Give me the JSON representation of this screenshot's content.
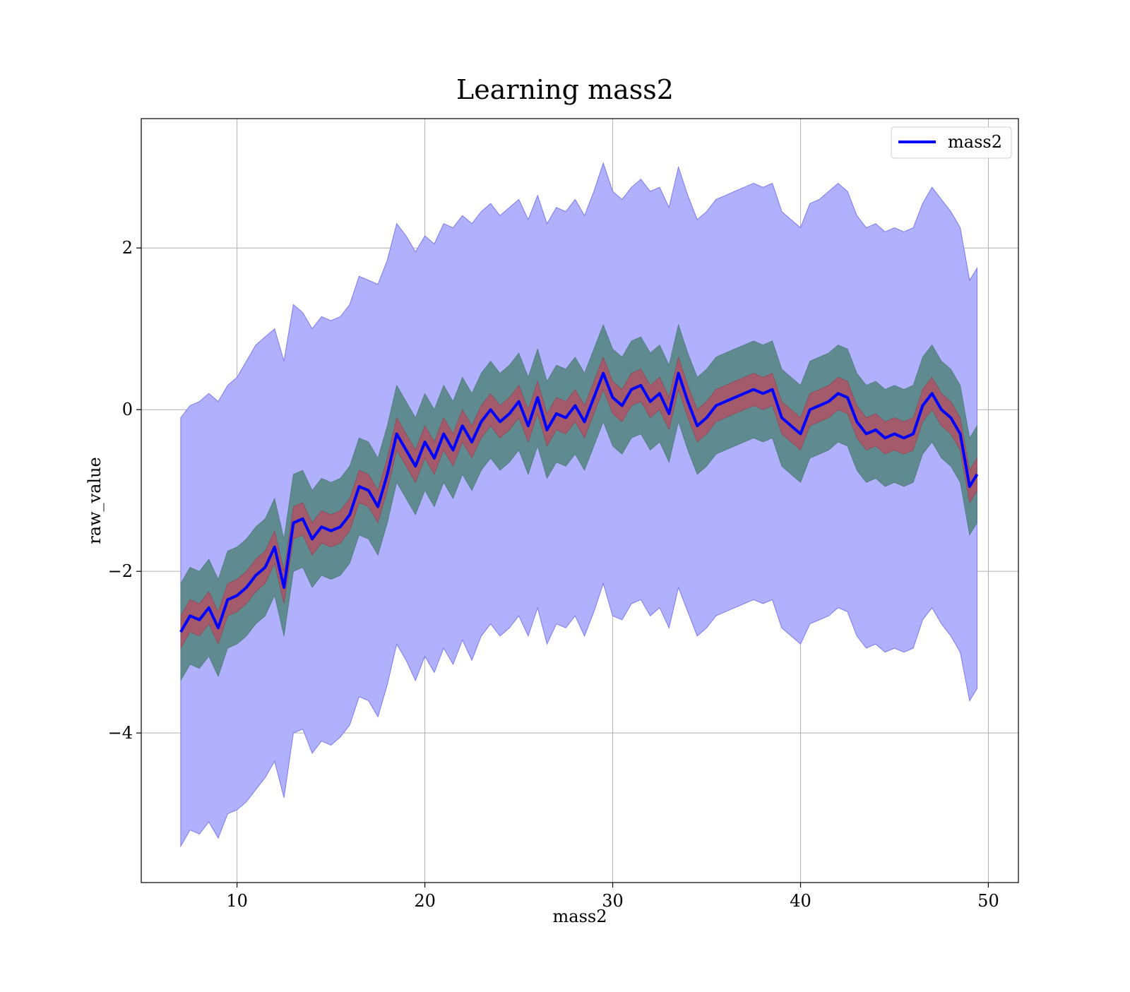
{
  "chart_data": {
    "type": "line",
    "title": "Learning mass2",
    "xlabel": "mass2",
    "ylabel": "raw_value",
    "xlim": [
      4.9,
      51.6
    ],
    "ylim": [
      -5.85,
      3.6
    ],
    "xticks": [
      10,
      20,
      30,
      40,
      50
    ],
    "yticks": [
      -4,
      -2,
      0,
      2
    ],
    "grid": true,
    "legend": {
      "position": "top-right",
      "entries": [
        "mass2"
      ]
    },
    "colors": {
      "line": "#0000ff",
      "outer_band": "#b0b0fc",
      "outer_band_edge": "#7b7bf4",
      "middle_band": "#5f8a8f",
      "inner_band": "#a35a6b",
      "grid": "#b0b0b0"
    },
    "series": [
      {
        "name": "mass2",
        "x": [
          7.0,
          7.5,
          8.0,
          8.5,
          9.0,
          9.5,
          10.0,
          10.5,
          11.0,
          11.5,
          12.0,
          12.5,
          13.0,
          13.5,
          14.0,
          14.5,
          15.0,
          15.5,
          16.0,
          16.5,
          17.0,
          17.5,
          18.0,
          18.5,
          19.0,
          19.5,
          20.0,
          20.5,
          21.0,
          21.5,
          22.0,
          22.5,
          23.0,
          23.5,
          24.0,
          24.5,
          25.0,
          25.5,
          26.0,
          26.5,
          27.0,
          27.5,
          28.0,
          28.5,
          29.0,
          29.5,
          30.0,
          30.5,
          31.0,
          31.5,
          32.0,
          32.5,
          33.0,
          33.5,
          34.0,
          34.5,
          35.0,
          35.5,
          36.0,
          36.5,
          37.0,
          37.5,
          38.0,
          38.5,
          39.0,
          39.5,
          40.0,
          40.5,
          41.0,
          41.5,
          42.0,
          42.5,
          43.0,
          43.5,
          44.0,
          44.5,
          45.0,
          45.5,
          46.0,
          46.5,
          47.0,
          47.5,
          48.0,
          48.5,
          49.0,
          49.4
        ],
        "y": [
          -2.75,
          -2.55,
          -2.6,
          -2.45,
          -2.7,
          -2.35,
          -2.3,
          -2.2,
          -2.05,
          -1.95,
          -1.7,
          -2.2,
          -1.4,
          -1.35,
          -1.6,
          -1.45,
          -1.5,
          -1.45,
          -1.3,
          -0.95,
          -1.0,
          -1.2,
          -0.8,
          -0.3,
          -0.5,
          -0.7,
          -0.4,
          -0.6,
          -0.3,
          -0.5,
          -0.2,
          -0.4,
          -0.15,
          0.0,
          -0.15,
          -0.05,
          0.1,
          -0.2,
          0.15,
          -0.25,
          -0.05,
          -0.1,
          0.05,
          -0.15,
          0.15,
          0.45,
          0.15,
          0.05,
          0.25,
          0.3,
          0.1,
          0.2,
          -0.05,
          0.45,
          0.1,
          -0.2,
          -0.1,
          0.05,
          0.1,
          0.15,
          0.2,
          0.25,
          0.2,
          0.25,
          -0.1,
          -0.2,
          -0.3,
          0.0,
          0.05,
          0.1,
          0.2,
          0.15,
          -0.15,
          -0.3,
          -0.25,
          -0.35,
          -0.3,
          -0.35,
          -0.3,
          0.05,
          0.2,
          0.0,
          -0.1,
          -0.3,
          -0.95,
          -0.8
        ],
        "outer_band": {
          "upper": [
            -0.1,
            0.05,
            0.1,
            0.2,
            0.1,
            0.3,
            0.4,
            0.6,
            0.8,
            0.9,
            1.0,
            0.6,
            1.3,
            1.2,
            1.0,
            1.15,
            1.1,
            1.15,
            1.3,
            1.65,
            1.6,
            1.55,
            1.85,
            2.3,
            2.15,
            1.95,
            2.15,
            2.05,
            2.3,
            2.25,
            2.4,
            2.3,
            2.45,
            2.55,
            2.4,
            2.5,
            2.6,
            2.35,
            2.65,
            2.3,
            2.5,
            2.45,
            2.6,
            2.4,
            2.7,
            3.05,
            2.7,
            2.6,
            2.75,
            2.85,
            2.7,
            2.75,
            2.5,
            3.0,
            2.65,
            2.35,
            2.45,
            2.6,
            2.65,
            2.7,
            2.75,
            2.8,
            2.75,
            2.8,
            2.45,
            2.35,
            2.25,
            2.55,
            2.6,
            2.7,
            2.8,
            2.7,
            2.4,
            2.25,
            2.3,
            2.2,
            2.25,
            2.2,
            2.25,
            2.55,
            2.75,
            2.6,
            2.45,
            2.25,
            1.6,
            1.75
          ],
          "lower": [
            -5.4,
            -5.2,
            -5.25,
            -5.1,
            -5.3,
            -5.0,
            -4.95,
            -4.85,
            -4.7,
            -4.55,
            -4.35,
            -4.8,
            -4.0,
            -3.95,
            -4.25,
            -4.1,
            -4.15,
            -4.05,
            -3.9,
            -3.55,
            -3.6,
            -3.8,
            -3.4,
            -2.9,
            -3.1,
            -3.35,
            -3.05,
            -3.25,
            -2.95,
            -3.15,
            -2.85,
            -3.1,
            -2.8,
            -2.65,
            -2.8,
            -2.7,
            -2.55,
            -2.8,
            -2.45,
            -2.9,
            -2.65,
            -2.7,
            -2.55,
            -2.8,
            -2.5,
            -2.15,
            -2.55,
            -2.6,
            -2.4,
            -2.35,
            -2.55,
            -2.45,
            -2.7,
            -2.2,
            -2.5,
            -2.8,
            -2.7,
            -2.55,
            -2.5,
            -2.45,
            -2.4,
            -2.35,
            -2.4,
            -2.35,
            -2.7,
            -2.8,
            -2.9,
            -2.65,
            -2.6,
            -2.55,
            -2.45,
            -2.5,
            -2.8,
            -2.95,
            -2.9,
            -3.0,
            -2.95,
            -3.0,
            -2.95,
            -2.6,
            -2.45,
            -2.65,
            -2.8,
            -3.0,
            -3.6,
            -3.45
          ]
        },
        "middle_band": {
          "upper": [
            -2.15,
            -1.95,
            -2.0,
            -1.85,
            -2.1,
            -1.75,
            -1.7,
            -1.6,
            -1.45,
            -1.35,
            -1.1,
            -1.6,
            -0.8,
            -0.75,
            -1.0,
            -0.85,
            -0.9,
            -0.85,
            -0.7,
            -0.35,
            -0.4,
            -0.6,
            -0.2,
            0.3,
            0.1,
            -0.1,
            0.2,
            0.0,
            0.3,
            0.1,
            0.4,
            0.2,
            0.45,
            0.6,
            0.45,
            0.55,
            0.7,
            0.4,
            0.75,
            0.35,
            0.55,
            0.5,
            0.65,
            0.45,
            0.75,
            1.05,
            0.75,
            0.65,
            0.85,
            0.9,
            0.7,
            0.8,
            0.55,
            1.05,
            0.7,
            0.4,
            0.5,
            0.65,
            0.7,
            0.75,
            0.8,
            0.85,
            0.8,
            0.85,
            0.5,
            0.4,
            0.3,
            0.6,
            0.65,
            0.7,
            0.8,
            0.75,
            0.45,
            0.3,
            0.35,
            0.25,
            0.3,
            0.25,
            0.3,
            0.65,
            0.8,
            0.6,
            0.5,
            0.3,
            -0.35,
            -0.2
          ],
          "lower": [
            -3.35,
            -3.15,
            -3.2,
            -3.05,
            -3.3,
            -2.95,
            -2.9,
            -2.8,
            -2.65,
            -2.55,
            -2.3,
            -2.8,
            -2.0,
            -1.95,
            -2.2,
            -2.05,
            -2.1,
            -2.05,
            -1.9,
            -1.55,
            -1.6,
            -1.8,
            -1.4,
            -0.9,
            -1.1,
            -1.3,
            -1.0,
            -1.2,
            -0.9,
            -1.1,
            -0.8,
            -1.0,
            -0.75,
            -0.6,
            -0.75,
            -0.65,
            -0.5,
            -0.8,
            -0.45,
            -0.85,
            -0.65,
            -0.7,
            -0.55,
            -0.75,
            -0.45,
            -0.15,
            -0.45,
            -0.55,
            -0.35,
            -0.3,
            -0.5,
            -0.4,
            -0.65,
            -0.15,
            -0.5,
            -0.8,
            -0.7,
            -0.55,
            -0.5,
            -0.45,
            -0.4,
            -0.35,
            -0.4,
            -0.35,
            -0.7,
            -0.8,
            -0.9,
            -0.6,
            -0.55,
            -0.5,
            -0.4,
            -0.45,
            -0.75,
            -0.9,
            -0.85,
            -0.95,
            -0.9,
            -0.95,
            -0.9,
            -0.55,
            -0.4,
            -0.6,
            -0.7,
            -0.9,
            -1.55,
            -1.4
          ]
        },
        "inner_band": {
          "upper": [
            -2.55,
            -2.35,
            -2.4,
            -2.25,
            -2.5,
            -2.15,
            -2.1,
            -2.0,
            -1.85,
            -1.75,
            -1.5,
            -2.0,
            -1.2,
            -1.15,
            -1.4,
            -1.25,
            -1.3,
            -1.25,
            -1.1,
            -0.75,
            -0.8,
            -1.0,
            -0.6,
            -0.1,
            -0.3,
            -0.5,
            -0.2,
            -0.4,
            -0.1,
            -0.3,
            0.0,
            -0.2,
            0.05,
            0.2,
            0.05,
            0.15,
            0.3,
            0.0,
            0.35,
            -0.05,
            0.15,
            0.1,
            0.25,
            0.05,
            0.35,
            0.65,
            0.35,
            0.25,
            0.45,
            0.5,
            0.3,
            0.4,
            0.15,
            0.65,
            0.3,
            0.0,
            0.1,
            0.25,
            0.3,
            0.35,
            0.4,
            0.45,
            0.4,
            0.45,
            0.1,
            0.0,
            -0.1,
            0.2,
            0.25,
            0.3,
            0.4,
            0.35,
            0.05,
            -0.1,
            -0.05,
            -0.15,
            -0.1,
            -0.15,
            -0.1,
            0.25,
            0.4,
            0.2,
            0.1,
            -0.1,
            -0.75,
            -0.6
          ],
          "lower": [
            -2.95,
            -2.75,
            -2.8,
            -2.65,
            -2.9,
            -2.55,
            -2.5,
            -2.4,
            -2.25,
            -2.15,
            -1.9,
            -2.4,
            -1.6,
            -1.55,
            -1.8,
            -1.65,
            -1.7,
            -1.65,
            -1.5,
            -1.15,
            -1.2,
            -1.4,
            -1.0,
            -0.5,
            -0.7,
            -0.9,
            -0.6,
            -0.8,
            -0.5,
            -0.7,
            -0.4,
            -0.6,
            -0.35,
            -0.2,
            -0.35,
            -0.25,
            -0.1,
            -0.4,
            -0.05,
            -0.45,
            -0.25,
            -0.3,
            -0.15,
            -0.35,
            -0.05,
            0.25,
            -0.05,
            -0.15,
            0.05,
            0.1,
            -0.1,
            0.0,
            -0.25,
            0.25,
            -0.1,
            -0.4,
            -0.3,
            -0.15,
            -0.1,
            -0.05,
            0.0,
            0.05,
            0.0,
            0.05,
            -0.3,
            -0.4,
            -0.5,
            -0.2,
            -0.15,
            -0.1,
            0.0,
            -0.05,
            -0.35,
            -0.5,
            -0.45,
            -0.55,
            -0.5,
            -0.55,
            -0.5,
            -0.15,
            0.0,
            -0.2,
            -0.3,
            -0.5,
            -1.15,
            -1.0
          ]
        }
      }
    ]
  }
}
